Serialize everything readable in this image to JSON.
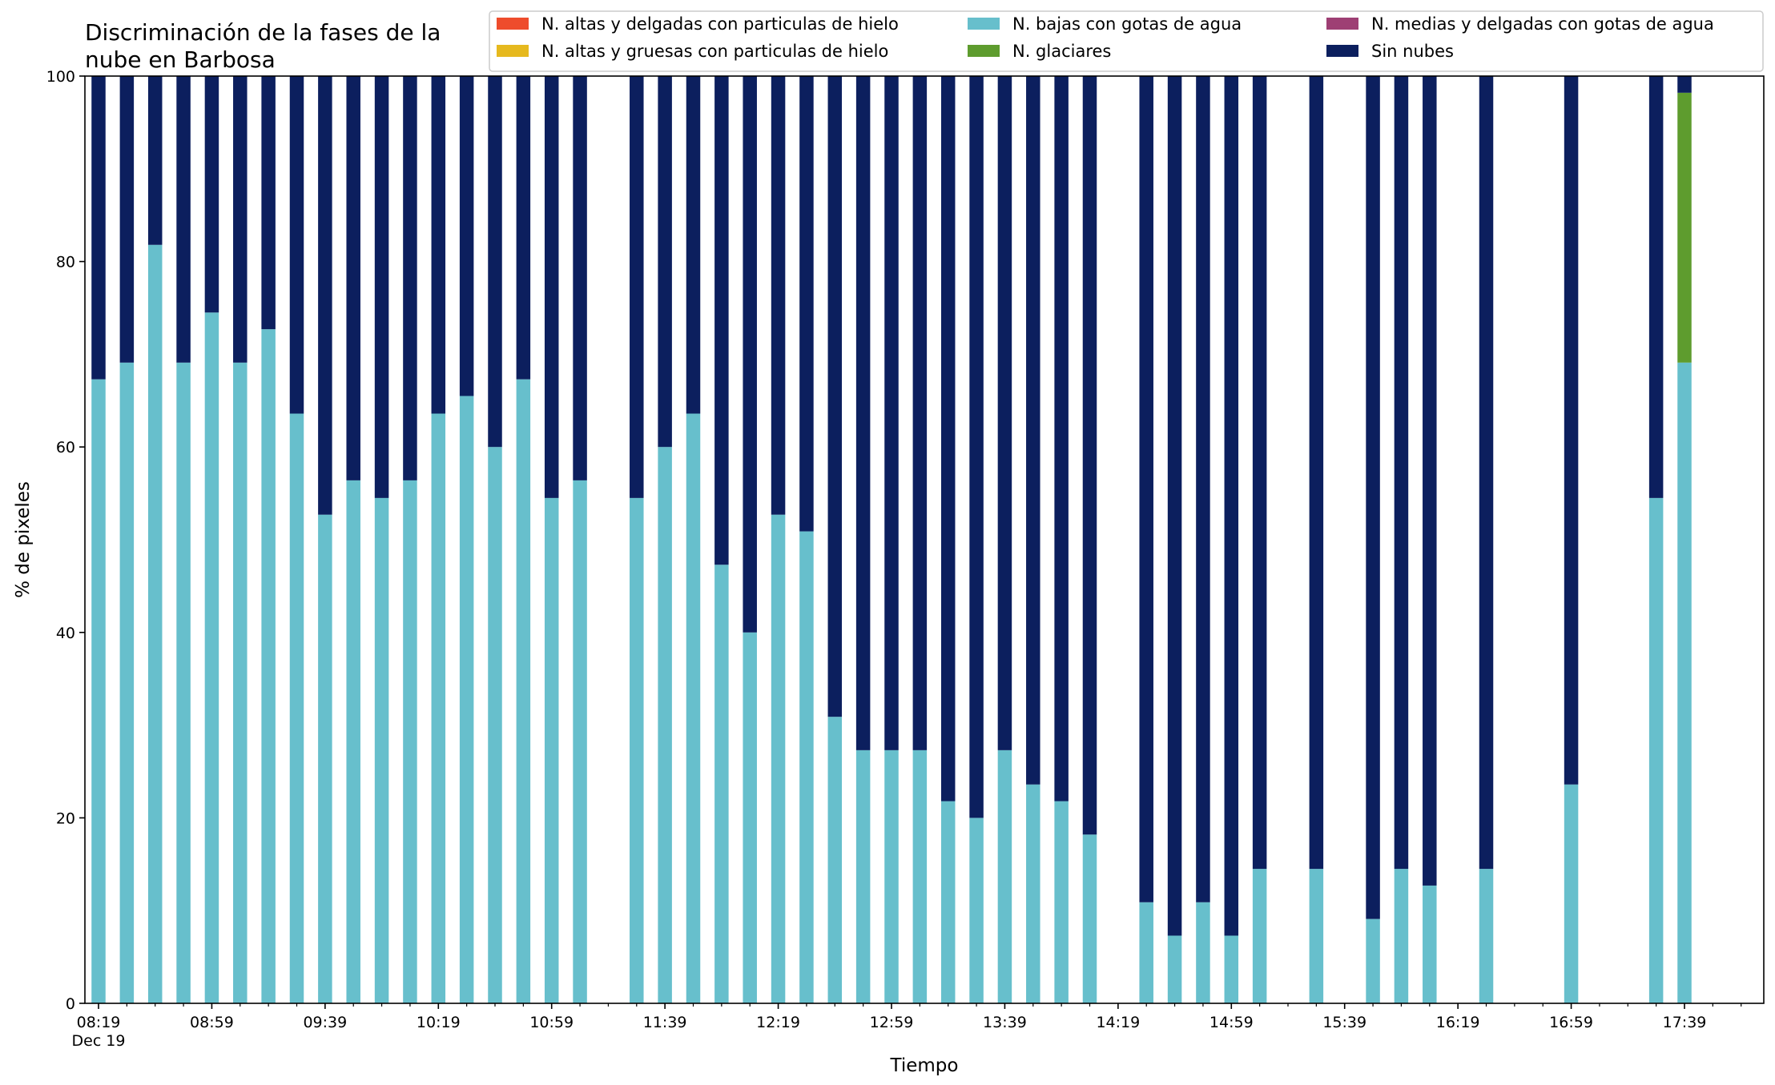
{
  "chart_data": {
    "type": "bar",
    "stacked": true,
    "title": "Discriminación de la fases de la nube en Barbosa",
    "title_lines": [
      "Discriminación de la fases de la",
      "nube en Barbosa"
    ],
    "xlabel": "Tiempo",
    "ylabel": "% de pixeles",
    "ylim": [
      0,
      100
    ],
    "yticks": [
      0,
      20,
      40,
      60,
      80,
      100
    ],
    "date_label": "Dec 19",
    "x_tick_labels": [
      "08:19",
      "08:59",
      "09:39",
      "10:19",
      "10:59",
      "11:39",
      "12:19",
      "12:59",
      "13:39",
      "14:19",
      "14:59",
      "15:39",
      "16:19",
      "16:59",
      "17:39"
    ],
    "legend_position": "top-right",
    "grid": false,
    "times": [
      "08:19",
      "08:29",
      "08:39",
      "08:49",
      "08:59",
      "09:09",
      "09:19",
      "09:29",
      "09:39",
      "09:49",
      "09:59",
      "10:09",
      "10:19",
      "10:29",
      "10:39",
      "10:49",
      "10:59",
      "11:09",
      "11:29",
      "11:39",
      "11:49",
      "11:59",
      "12:09",
      "12:19",
      "12:29",
      "12:39",
      "12:49",
      "12:59",
      "13:09",
      "13:19",
      "13:29",
      "13:39",
      "13:49",
      "13:59",
      "14:09",
      "14:29",
      "14:39",
      "14:49",
      "14:59",
      "15:09",
      "15:29",
      "15:49",
      "15:59",
      "16:09",
      "16:29",
      "16:59",
      "17:29",
      "17:39"
    ],
    "series": [
      {
        "name": "N. altas y delgadas con particulas de hielo",
        "color": "#ee4c2c",
        "values": [
          0,
          0,
          0,
          0,
          0,
          0,
          0,
          0,
          0,
          0,
          0,
          0,
          0,
          0,
          0,
          0,
          0,
          0,
          0,
          0,
          0,
          0,
          0,
          0,
          0,
          0,
          0,
          0,
          0,
          0,
          0,
          0,
          0,
          0,
          0,
          0,
          0,
          0,
          0,
          0,
          0,
          0,
          0,
          0,
          0,
          0,
          0,
          0
        ]
      },
      {
        "name": "N. altas y gruesas con particulas de hielo",
        "color": "#e6b91e",
        "values": [
          0,
          0,
          0,
          0,
          0,
          0,
          0,
          0,
          0,
          0,
          0,
          0,
          0,
          0,
          0,
          0,
          0,
          0,
          0,
          0,
          0,
          0,
          0,
          0,
          0,
          0,
          0,
          0,
          0,
          0,
          0,
          0,
          0,
          0,
          0,
          0,
          0,
          0,
          0,
          0,
          0,
          0,
          0,
          0,
          0,
          0,
          0,
          0
        ]
      },
      {
        "name": "N. bajas con gotas de agua",
        "color": "#67bfcc",
        "values": [
          67.3,
          69.1,
          81.8,
          69.1,
          74.5,
          69.1,
          72.7,
          63.6,
          52.7,
          56.4,
          54.5,
          56.4,
          63.6,
          65.5,
          60.0,
          67.3,
          54.5,
          56.4,
          54.5,
          60.0,
          63.6,
          47.3,
          40.0,
          52.7,
          50.9,
          30.9,
          27.3,
          27.3,
          27.3,
          21.8,
          20.0,
          27.3,
          23.6,
          21.8,
          18.2,
          10.9,
          7.3,
          10.9,
          7.3,
          14.5,
          14.5,
          9.1,
          14.5,
          12.7,
          14.5,
          23.6,
          54.5,
          69.1
        ]
      },
      {
        "name": "N. glaciares",
        "color": "#5e9c2e",
        "values": [
          0,
          0,
          0,
          0,
          0,
          0,
          0,
          0,
          0,
          0,
          0,
          0,
          0,
          0,
          0,
          0,
          0,
          0,
          0,
          0,
          0,
          0,
          0,
          0,
          0,
          0,
          0,
          0,
          0,
          0,
          0,
          0,
          0,
          0,
          0,
          0,
          0,
          0,
          0,
          0,
          0,
          0,
          0,
          0,
          0,
          0,
          0,
          29.1
        ]
      },
      {
        "name": "N. medias y delgadas con gotas de agua",
        "color": "#9e3f74",
        "values": [
          0,
          0,
          0,
          0,
          0,
          0,
          0,
          0,
          0,
          0,
          0,
          0,
          0,
          0,
          0,
          0,
          0,
          0,
          0,
          0,
          0,
          0,
          0,
          0,
          0,
          0,
          0,
          0,
          0,
          0,
          0,
          0,
          0,
          0,
          0,
          0,
          0,
          0,
          0,
          0,
          0,
          0,
          0,
          0,
          0,
          0,
          0,
          0
        ]
      },
      {
        "name": "Sin nubes",
        "color": "#0c1f5e",
        "values": [
          32.7,
          30.9,
          18.2,
          30.9,
          25.5,
          30.9,
          27.3,
          36.4,
          47.3,
          43.6,
          45.5,
          43.6,
          36.4,
          34.5,
          40.0,
          32.7,
          45.5,
          43.6,
          45.5,
          40.0,
          36.4,
          52.7,
          60.0,
          47.3,
          49.1,
          69.1,
          72.7,
          72.7,
          72.7,
          78.2,
          80.0,
          72.7,
          76.4,
          78.2,
          81.8,
          89.1,
          92.7,
          89.1,
          92.7,
          85.5,
          85.5,
          90.9,
          85.5,
          87.3,
          85.5,
          76.4,
          45.5,
          1.8
        ]
      }
    ]
  }
}
